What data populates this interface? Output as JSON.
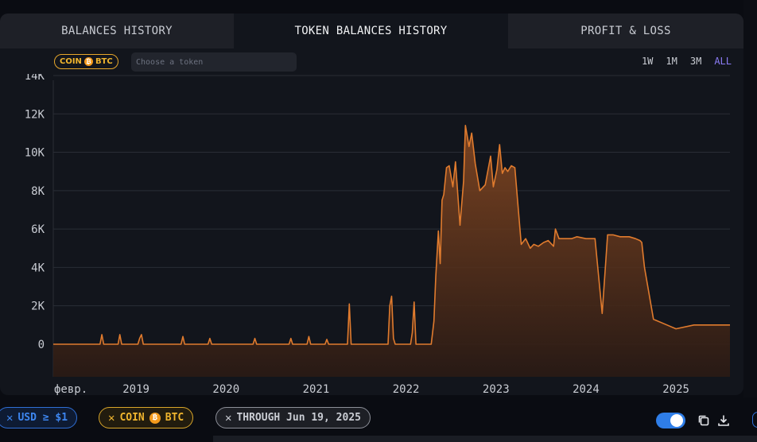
{
  "tabs": [
    {
      "label": "BALANCES HISTORY"
    },
    {
      "label": "TOKEN BALANCES HISTORY"
    },
    {
      "label": "PROFIT & LOSS"
    }
  ],
  "filters": {
    "coin_chip": {
      "prefix": "COIN",
      "symbol": "BTC"
    },
    "token_placeholder": "Choose a token"
  },
  "ranges": [
    {
      "label": "1W",
      "active": false
    },
    {
      "label": "1M",
      "active": false
    },
    {
      "label": "3M",
      "active": false
    },
    {
      "label": "ALL",
      "active": true
    }
  ],
  "bottom_pills": {
    "usd": {
      "label": "USD ≥ $1"
    },
    "coin": {
      "prefix": "COIN",
      "symbol": "BTC"
    },
    "through": {
      "label": "THROUGH Jun 19, 2025"
    }
  },
  "icons": {
    "btc": "bitcoin-icon",
    "close": "close-icon",
    "copy": "copy-icon",
    "download": "download-icon"
  },
  "colors": {
    "series": "#e07b2e",
    "accent": "#8b7cf6",
    "toggle": "#2f7ee8"
  },
  "chart_data": {
    "type": "area",
    "title": "",
    "xlabel": "",
    "ylabel": "",
    "ylim": [
      -1700,
      14000
    ],
    "y_ticks": [
      0,
      2000,
      4000,
      6000,
      8000,
      10000,
      12000,
      14000
    ],
    "y_tick_labels": [
      "0",
      "2K",
      "4K",
      "6K",
      "8K",
      "10K",
      "12K",
      "14K"
    ],
    "x_range": [
      2018.08,
      2025.6
    ],
    "x_ticks": [
      2018.1,
      2019,
      2020,
      2021,
      2022,
      2023,
      2024,
      2025
    ],
    "x_tick_labels": [
      "февр.",
      "2019",
      "2020",
      "2021",
      "2022",
      "2023",
      "2024",
      "2025"
    ],
    "grid": "horizontal",
    "series": [
      {
        "x": [
          2018.08,
          2018.6,
          2018.62,
          2018.64,
          2018.8,
          2018.82,
          2018.84,
          2019.02,
          2019.04,
          2019.06,
          2019.08,
          2019.1,
          2019.5,
          2019.52,
          2019.54,
          2019.8,
          2019.82,
          2019.84,
          2020.3,
          2020.32,
          2020.34,
          2020.7,
          2020.72,
          2020.74,
          2020.9,
          2020.92,
          2020.94,
          2021.1,
          2021.12,
          2021.14,
          2021.35,
          2021.37,
          2021.39,
          2021.8,
          2021.82,
          2021.84,
          2021.86,
          2021.88,
          2022.05,
          2022.07,
          2022.09,
          2022.11,
          2022.13,
          2022.15,
          2022.28,
          2022.31,
          2022.33,
          2022.36,
          2022.38,
          2022.4,
          2022.42,
          2022.45,
          2022.48,
          2022.52,
          2022.55,
          2022.6,
          2022.64,
          2022.66,
          2022.7,
          2022.73,
          2022.77,
          2022.82,
          2022.88,
          2022.94,
          2022.97,
          2023.01,
          2023.04,
          2023.07,
          2023.1,
          2023.13,
          2023.17,
          2023.21,
          2023.28,
          2023.33,
          2023.38,
          2023.42,
          2023.47,
          2023.53,
          2023.58,
          2023.64,
          2023.66,
          2023.7,
          2023.78,
          2023.84,
          2023.9,
          2024.0,
          2024.1,
          2024.18,
          2024.24,
          2024.3,
          2024.38,
          2024.48,
          2024.55,
          2024.6,
          2024.62,
          2024.65,
          2024.75,
          2024.9,
          2025.0,
          2025.2,
          2025.38,
          2025.4,
          2025.42,
          2025.44,
          2025.48,
          2025.52,
          2025.6
        ],
        "y": [
          0,
          0,
          500,
          0,
          0,
          500,
          0,
          0,
          300,
          500,
          0,
          0,
          0,
          400,
          0,
          0,
          300,
          0,
          0,
          300,
          0,
          0,
          300,
          0,
          0,
          400,
          0,
          0,
          250,
          0,
          0,
          2100,
          0,
          0,
          2000,
          2500,
          300,
          0,
          0,
          600,
          2200,
          0,
          0,
          0,
          0,
          1200,
          3500,
          5900,
          4200,
          7500,
          7800,
          9200,
          9300,
          8200,
          9500,
          6200,
          8500,
          11400,
          10300,
          11000,
          9400,
          8000,
          8300,
          9800,
          8200,
          9100,
          10400,
          8900,
          9200,
          9000,
          9300,
          9200,
          5200,
          5500,
          5000,
          5200,
          5100,
          5300,
          5400,
          5100,
          6000,
          5500,
          5500,
          5500,
          5600,
          5500,
          5500,
          1600,
          5700,
          5700,
          5600,
          5600,
          5500,
          5400,
          5300,
          4000,
          1300,
          1000,
          800,
          1000,
          1000,
          1000,
          1000,
          1000,
          1000,
          1000,
          1000
        ]
      }
    ]
  }
}
